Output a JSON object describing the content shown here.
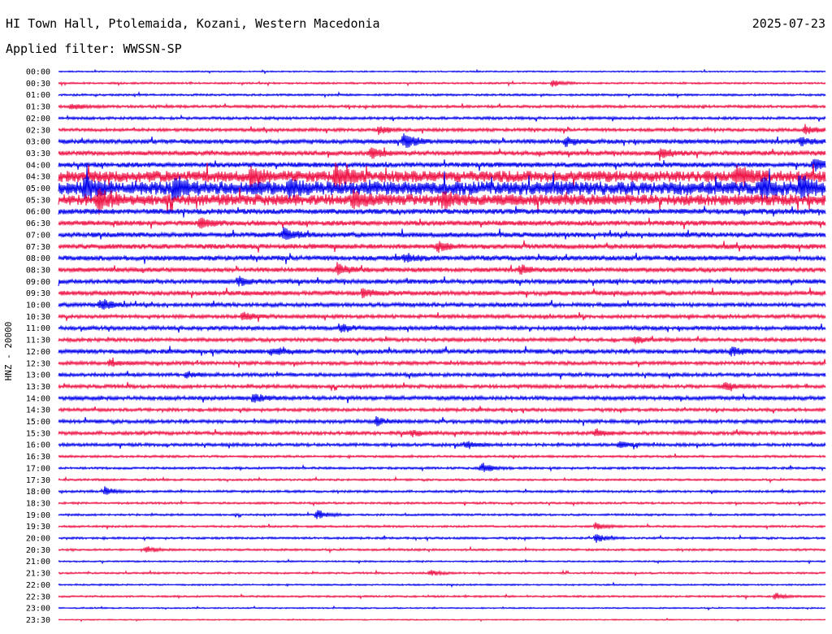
{
  "header": {
    "station": "HI Town Hall, Ptolemaida, Kozani, Western Macedonia",
    "date": "2025-07-23",
    "filter": "Applied filter: WWSSN-SP"
  },
  "colors": {
    "even_trace": "#0000ee",
    "odd_trace": "#ee1144",
    "text": "#000000"
  },
  "chart_data": {
    "type": "line",
    "title": "HI Town Hall, Ptolemaida, Kozani, Western Macedonia",
    "subtitle": "Applied filter: WWSSN-SP",
    "ylabel": "HNZ - 20000",
    "x_unit": "minutes per line",
    "x_range": [
      0,
      30
    ],
    "tick_labels": [
      "00:00",
      "00:30",
      "01:00",
      "01:30",
      "02:00",
      "02:30",
      "03:00",
      "03:30",
      "04:00",
      "04:30",
      "05:00",
      "05:30",
      "06:00",
      "06:30",
      "07:00",
      "07:30",
      "08:00",
      "08:30",
      "09:00",
      "09:30",
      "10:00",
      "10:30",
      "11:00",
      "11:30",
      "12:00",
      "12:30",
      "13:00",
      "13:30",
      "14:00",
      "14:30",
      "15:00",
      "15:30",
      "16:00",
      "16:30",
      "17:00",
      "17:30",
      "18:00",
      "18:30",
      "19:00",
      "19:30",
      "20:00",
      "20:30",
      "21:00",
      "21:30",
      "22:00",
      "22:30",
      "23:00",
      "23:30"
    ],
    "noise_level": [
      0.6,
      0.8,
      0.9,
      1.2,
      1.2,
      1.4,
      2.0,
      2.0,
      2.2,
      5.0,
      6.0,
      5.0,
      2.4,
      2.2,
      2.2,
      2.2,
      2.2,
      2.0,
      2.0,
      2.0,
      1.8,
      1.6,
      1.8,
      1.6,
      2.0,
      1.6,
      1.6,
      1.6,
      1.8,
      1.4,
      1.6,
      1.6,
      1.4,
      1.0,
      1.0,
      0.9,
      1.0,
      0.9,
      0.9,
      0.9,
      0.9,
      0.9,
      0.7,
      0.8,
      0.7,
      0.8,
      0.6,
      0.5
    ],
    "events": [
      {
        "line": 1,
        "at": 19.3,
        "amp": 3
      },
      {
        "line": 3,
        "at": 0.5,
        "amp": 3
      },
      {
        "line": 5,
        "at": 12.5,
        "amp": 4
      },
      {
        "line": 5,
        "at": 29.2,
        "amp": 4
      },
      {
        "line": 6,
        "at": 13.5,
        "amp": 7
      },
      {
        "line": 6,
        "at": 19.8,
        "amp": 4
      },
      {
        "line": 6,
        "at": 29.0,
        "amp": 4
      },
      {
        "line": 7,
        "at": 12.2,
        "amp": 5
      },
      {
        "line": 7,
        "at": 23.5,
        "amp": 5
      },
      {
        "line": 8,
        "at": 29.5,
        "amp": 6
      },
      {
        "line": 9,
        "at": 7.5,
        "amp": 8
      },
      {
        "line": 9,
        "at": 10.8,
        "amp": 10
      },
      {
        "line": 9,
        "at": 26.5,
        "amp": 9
      },
      {
        "line": 10,
        "at": 1.0,
        "amp": 10
      },
      {
        "line": 10,
        "at": 4.5,
        "amp": 10
      },
      {
        "line": 10,
        "at": 9.0,
        "amp": 6
      },
      {
        "line": 10,
        "at": 27.5,
        "amp": 8
      },
      {
        "line": 10,
        "at": 29.0,
        "amp": 9
      },
      {
        "line": 11,
        "at": 1.5,
        "amp": 9
      },
      {
        "line": 11,
        "at": 11.5,
        "amp": 7
      },
      {
        "line": 11,
        "at": 15.0,
        "amp": 6
      },
      {
        "line": 13,
        "at": 5.5,
        "amp": 5
      },
      {
        "line": 14,
        "at": 8.8,
        "amp": 6
      },
      {
        "line": 15,
        "at": 14.8,
        "amp": 4
      },
      {
        "line": 16,
        "at": 13.5,
        "amp": 4
      },
      {
        "line": 17,
        "at": 10.9,
        "amp": 5
      },
      {
        "line": 17,
        "at": 18.0,
        "amp": 4
      },
      {
        "line": 18,
        "at": 7.0,
        "amp": 4
      },
      {
        "line": 19,
        "at": 11.9,
        "amp": 5
      },
      {
        "line": 20,
        "at": 1.6,
        "amp": 5
      },
      {
        "line": 21,
        "at": 7.2,
        "amp": 4
      },
      {
        "line": 22,
        "at": 11.0,
        "amp": 4
      },
      {
        "line": 23,
        "at": 22.5,
        "amp": 3
      },
      {
        "line": 24,
        "at": 8.3,
        "amp": 4
      },
      {
        "line": 24,
        "at": 26.3,
        "amp": 4
      },
      {
        "line": 25,
        "at": 2.0,
        "amp": 3
      },
      {
        "line": 26,
        "at": 5.0,
        "amp": 3
      },
      {
        "line": 27,
        "at": 26.0,
        "amp": 4
      },
      {
        "line": 28,
        "at": 7.6,
        "amp": 4
      },
      {
        "line": 30,
        "at": 12.4,
        "amp": 4
      },
      {
        "line": 31,
        "at": 13.8,
        "amp": 3
      },
      {
        "line": 31,
        "at": 21.0,
        "amp": 3
      },
      {
        "line": 32,
        "at": 15.9,
        "amp": 4
      },
      {
        "line": 32,
        "at": 21.9,
        "amp": 3
      },
      {
        "line": 34,
        "at": 16.5,
        "amp": 5
      },
      {
        "line": 36,
        "at": 1.8,
        "amp": 4
      },
      {
        "line": 38,
        "at": 10.1,
        "amp": 4
      },
      {
        "line": 39,
        "at": 21.0,
        "amp": 3
      },
      {
        "line": 40,
        "at": 21.0,
        "amp": 4
      },
      {
        "line": 41,
        "at": 3.4,
        "amp": 3
      },
      {
        "line": 43,
        "at": 14.5,
        "amp": 3
      },
      {
        "line": 45,
        "at": 28.0,
        "amp": 3
      }
    ]
  }
}
